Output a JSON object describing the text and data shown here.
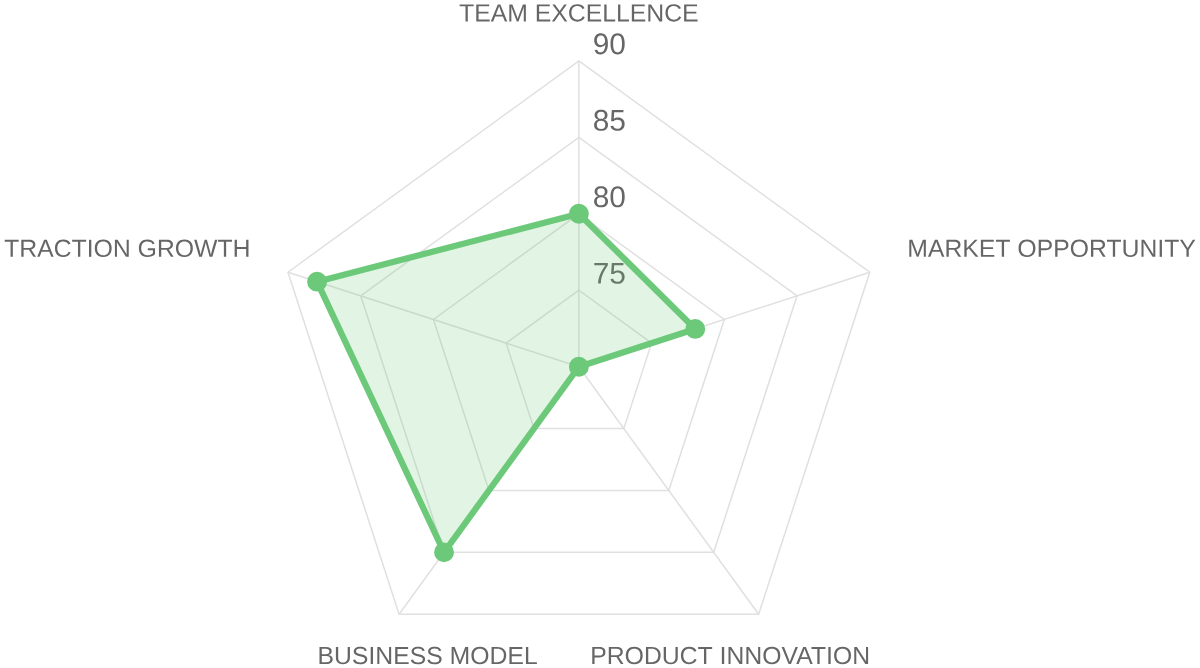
{
  "chart_data": {
    "type": "radar",
    "categories": [
      "TEAM EXCELLENCE",
      "MARKET OPPORTUNITY",
      "PRODUCT INNOVATION",
      "BUSINESS MODEL",
      "TRACTION GROWTH"
    ],
    "series": [
      {
        "color": "#6cc97a",
        "values": [
          80,
          78,
          70,
          85,
          88
        ]
      }
    ],
    "ylim": [
      70,
      90
    ],
    "yticks": [
      75,
      80,
      85,
      90
    ],
    "grid": true,
    "marker": "circle",
    "line_style": "solid"
  }
}
